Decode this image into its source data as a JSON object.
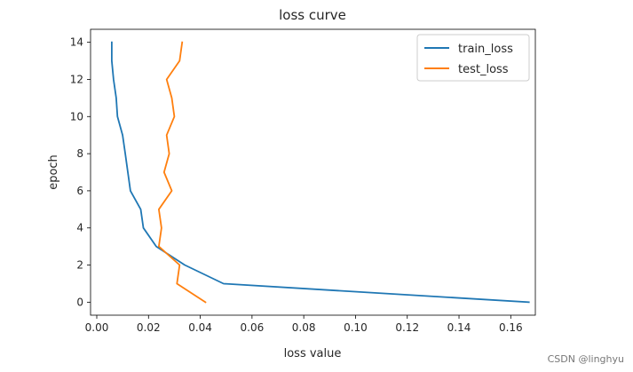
{
  "chart_data": {
    "type": "line",
    "title": "loss curve",
    "xlabel": "loss value",
    "ylabel": "epoch",
    "xlim": [
      -0.0024,
      0.1695
    ],
    "ylim": [
      -0.7,
      14.7
    ],
    "xticks": [
      0.0,
      0.02,
      0.04,
      0.06,
      0.08,
      0.1,
      0.12,
      0.14,
      0.16
    ],
    "xtick_labels": [
      "0.00",
      "0.02",
      "0.04",
      "0.06",
      "0.08",
      "0.10",
      "0.12",
      "0.14",
      "0.16"
    ],
    "yticks": [
      0,
      2,
      4,
      6,
      8,
      10,
      12,
      14
    ],
    "ytick_labels": [
      "0",
      "2",
      "4",
      "6",
      "8",
      "10",
      "12",
      "14"
    ],
    "grid": false,
    "legend_position": "top-right",
    "series": [
      {
        "name": "train_loss",
        "color": "#1f77b4",
        "x": [
          0.167,
          0.049,
          0.034,
          0.023,
          0.018,
          0.017,
          0.013,
          0.012,
          0.011,
          0.01,
          0.008,
          0.0075,
          0.0065,
          0.0058,
          0.0058
        ],
        "y": [
          0,
          1,
          2,
          3,
          4,
          5,
          6,
          7,
          8,
          9,
          10,
          11,
          12,
          13,
          14
        ]
      },
      {
        "name": "test_loss",
        "color": "#ff7f0e",
        "x": [
          0.042,
          0.031,
          0.032,
          0.024,
          0.025,
          0.024,
          0.029,
          0.026,
          0.028,
          0.027,
          0.03,
          0.029,
          0.027,
          0.032,
          0.033
        ],
        "y": [
          0,
          1,
          2,
          3,
          4,
          5,
          6,
          7,
          8,
          9,
          10,
          11,
          12,
          13,
          14
        ]
      }
    ]
  },
  "watermark": "CSDN @linghyu"
}
